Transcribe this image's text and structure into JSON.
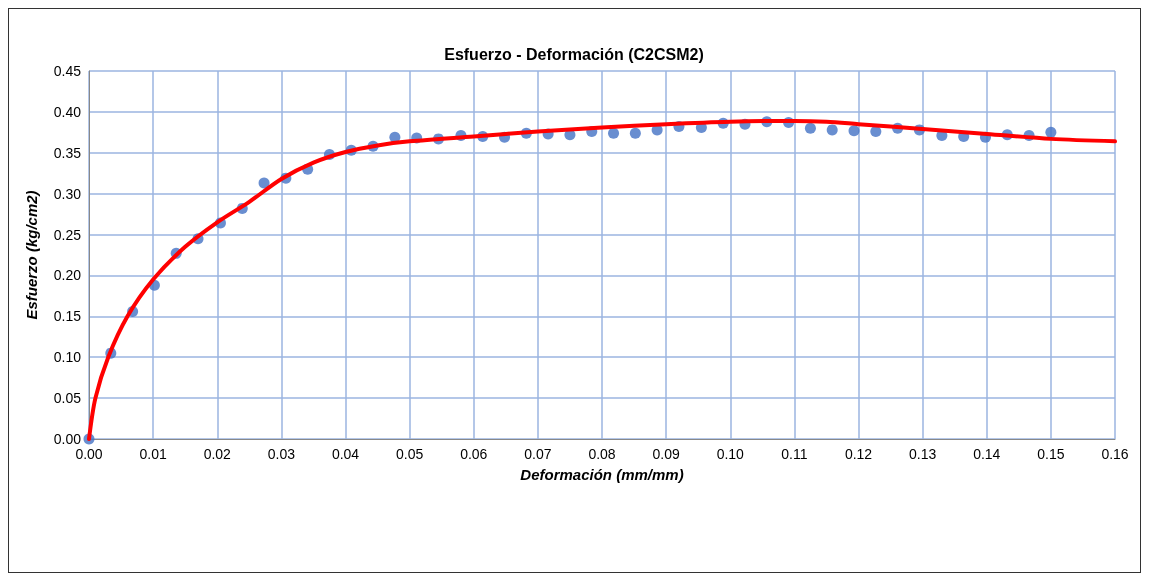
{
  "chart_data": {
    "type": "scatter",
    "title": "Esfuerzo - Deformación (C2CSM2)",
    "xlabel": "Deformación (mm/mm)",
    "ylabel": "Esfuerzo (kg/cm2)",
    "xlim": [
      0,
      0.16
    ],
    "xticks": [
      {
        "value": 0,
        "label": "0.00"
      },
      {
        "value": 0.01,
        "label": "0.01"
      },
      {
        "value": 0.02,
        "label": "0.02"
      },
      {
        "value": 0.03,
        "label": "0.03"
      },
      {
        "value": 0.04,
        "label": "0.04"
      },
      {
        "value": 0.05,
        "label": "0.05"
      },
      {
        "value": 0.06,
        "label": "0.06"
      },
      {
        "value": 0.07,
        "label": "0.07"
      },
      {
        "value": 0.08,
        "label": "0.08"
      },
      {
        "value": 0.09,
        "label": "0.09"
      },
      {
        "value": 0.1,
        "label": "0.10"
      },
      {
        "value": 0.11,
        "label": "0.11"
      },
      {
        "value": 0.12,
        "label": "0.12"
      },
      {
        "value": 0.13,
        "label": "0.13"
      },
      {
        "value": 0.14,
        "label": "0.14"
      },
      {
        "value": 0.15,
        "label": "0.15"
      },
      {
        "value": 0.16,
        "label": "0.16"
      }
    ],
    "ylim": [
      0,
      0.45
    ],
    "yticks": [
      {
        "value": 0,
        "label": "0.00"
      },
      {
        "value": 0.05,
        "label": "0.05"
      },
      {
        "value": 0.1,
        "label": "0.10"
      },
      {
        "value": 0.15,
        "label": "0.15"
      },
      {
        "value": 0.2,
        "label": "0.20"
      },
      {
        "value": 0.25,
        "label": "0.25"
      },
      {
        "value": 0.3,
        "label": "0.30"
      },
      {
        "value": 0.35,
        "label": "0.35"
      },
      {
        "value": 0.4,
        "label": "0.40"
      },
      {
        "value": 0.45,
        "label": "0.45"
      }
    ],
    "grid": true,
    "marker": "circle",
    "series": [
      {
        "color": "#4472c4",
        "x": [
          0,
          0.0034,
          0.0068,
          0.0102,
          0.0136,
          0.017,
          0.0205,
          0.0239,
          0.0273,
          0.0307,
          0.0341,
          0.0375,
          0.0409,
          0.0443,
          0.0477,
          0.0511,
          0.0545,
          0.058,
          0.0614,
          0.0648,
          0.0682,
          0.0716,
          0.075,
          0.0784,
          0.0818,
          0.0852,
          0.0886,
          0.092,
          0.0955,
          0.0989,
          0.1023,
          0.1057,
          0.1091,
          0.1125,
          0.1159,
          0.1193,
          0.1227,
          0.1261,
          0.1295,
          0.133,
          0.1364,
          0.1398,
          0.1432,
          0.1466,
          0.15
        ],
        "values": [
          0,
          0.105,
          0.156,
          0.188,
          0.227,
          0.245,
          0.264,
          0.282,
          0.313,
          0.319,
          0.33,
          0.348,
          0.353,
          0.358,
          0.369,
          0.368,
          0.367,
          0.371,
          0.37,
          0.369,
          0.374,
          0.373,
          0.372,
          0.376,
          0.374,
          0.374,
          0.378,
          0.382,
          0.381,
          0.386,
          0.385,
          0.388,
          0.387,
          0.38,
          0.378,
          0.377,
          0.376,
          0.38,
          0.378,
          0.371,
          0.37,
          0.369,
          0.372,
          0.371,
          0.375
        ]
      },
      {
        "type": "line",
        "color": "#ff0000",
        "marker": "none",
        "line_style": "solid",
        "x": [
          0,
          0.001,
          0.003,
          0.006,
          0.01,
          0.015,
          0.02,
          0.025,
          0.03,
          0.035,
          0.04,
          0.045,
          0.05,
          0.06,
          0.07,
          0.08,
          0.09,
          0.1,
          0.11,
          0.115,
          0.12,
          0.13,
          0.14,
          0.15,
          0.16
        ],
        "values": [
          0,
          0.05,
          0.1,
          0.15,
          0.195,
          0.235,
          0.265,
          0.29,
          0.318,
          0.338,
          0.351,
          0.359,
          0.364,
          0.37,
          0.376,
          0.381,
          0.385,
          0.388,
          0.389,
          0.388,
          0.385,
          0.379,
          0.373,
          0.367,
          0.364
        ]
      }
    ]
  }
}
